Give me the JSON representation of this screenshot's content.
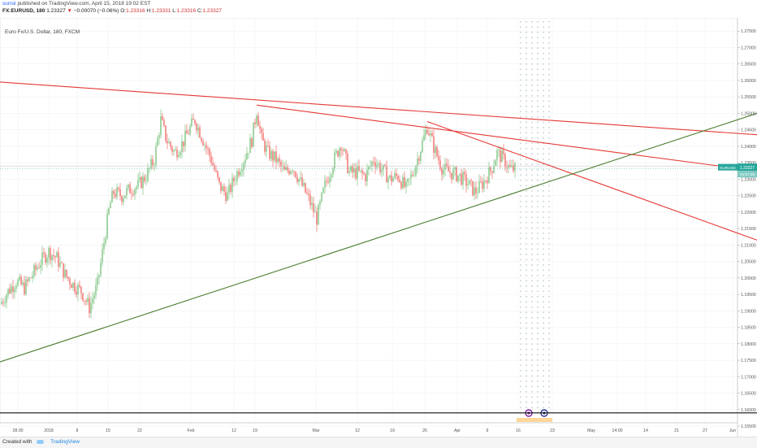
{
  "header": {
    "user": "sunsii",
    "published": "published on TradingView.com, April 15, 2018 19:02 EST",
    "symbol": "FX:EURUSD, 180",
    "price": "1.23327",
    "change": "−0.00070 (−0.06%)",
    "ohlc": [
      {
        "label": "O:",
        "value": "1.23316"
      },
      {
        "label": "H:",
        "value": "1.23331"
      },
      {
        "label": "L:",
        "value": "1.23316"
      },
      {
        "label": "C:",
        "value": "1.23327"
      }
    ]
  },
  "chart_data": {
    "type": "candlestick",
    "title": "Euro Fx/U.S. Dollar, 180, FXCM",
    "symbol": "FX:EURUSD",
    "interval": "180",
    "ylim": [
      1.156,
      1.279
    ],
    "y_ticks": [
      "1.27500",
      "1.27000",
      "1.26500",
      "1.26000",
      "1.25500",
      "1.25000",
      "1.24500",
      "1.24000",
      "1.23500",
      "1.23000",
      "1.22500",
      "1.22000",
      "1.21500",
      "1.21000",
      "1.20500",
      "1.20000",
      "1.19500",
      "1.19000",
      "1.18500",
      "1.18000",
      "1.17500",
      "1.17000",
      "1.16500",
      "1.16000",
      "1.15500"
    ],
    "x_ticks": [
      "28.00",
      "2018",
      "8",
      "15",
      "22",
      "Feb",
      "12",
      "19",
      "Mar",
      "12",
      "19",
      "26",
      "Apr",
      "9",
      "16",
      "23",
      "May",
      "14:00",
      "14",
      "21",
      "27",
      "Jun"
    ],
    "approx_close": [
      [
        0,
        1.192
      ],
      [
        10,
        1.196
      ],
      [
        20,
        1.199
      ],
      [
        30,
        1.197
      ],
      [
        40,
        1.201
      ],
      [
        50,
        1.205
      ],
      [
        60,
        1.208
      ],
      [
        70,
        1.206
      ],
      [
        80,
        1.201
      ],
      [
        90,
        1.198
      ],
      [
        100,
        1.196
      ],
      [
        110,
        1.191
      ],
      [
        120,
        1.198
      ],
      [
        125,
        1.206
      ],
      [
        130,
        1.214
      ],
      [
        135,
        1.222
      ],
      [
        140,
        1.226
      ],
      [
        150,
        1.225
      ],
      [
        160,
        1.227
      ],
      [
        170,
        1.228
      ],
      [
        180,
        1.231
      ],
      [
        190,
        1.236
      ],
      [
        198,
        1.248
      ],
      [
        205,
        1.242
      ],
      [
        215,
        1.238
      ],
      [
        225,
        1.241
      ],
      [
        235,
        1.246
      ],
      [
        240,
        1.248
      ],
      [
        250,
        1.242
      ],
      [
        260,
        1.236
      ],
      [
        270,
        1.228
      ],
      [
        280,
        1.225
      ],
      [
        290,
        1.231
      ],
      [
        300,
        1.236
      ],
      [
        310,
        1.242
      ],
      [
        316,
        1.251
      ],
      [
        322,
        1.242
      ],
      [
        330,
        1.238
      ],
      [
        340,
        1.236
      ],
      [
        350,
        1.232
      ],
      [
        360,
        1.234
      ],
      [
        370,
        1.229
      ],
      [
        380,
        1.224
      ],
      [
        390,
        1.218
      ],
      [
        400,
        1.228
      ],
      [
        410,
        1.235
      ],
      [
        420,
        1.241
      ],
      [
        430,
        1.232
      ],
      [
        440,
        1.232
      ],
      [
        450,
        1.231
      ],
      [
        460,
        1.236
      ],
      [
        470,
        1.233
      ],
      [
        480,
        1.23
      ],
      [
        490,
        1.231
      ],
      [
        500,
        1.227
      ],
      [
        510,
        1.233
      ],
      [
        520,
        1.241
      ],
      [
        526,
        1.246
      ],
      [
        535,
        1.239
      ],
      [
        545,
        1.233
      ],
      [
        555,
        1.232
      ],
      [
        565,
        1.231
      ],
      [
        575,
        1.229
      ],
      [
        585,
        1.226
      ],
      [
        595,
        1.229
      ],
      [
        605,
        1.233
      ],
      [
        612,
        1.238
      ],
      [
        620,
        1.236
      ],
      [
        628,
        1.233
      ],
      [
        635,
        1.233
      ]
    ],
    "last_price": "1.23327",
    "last_label": "EURUSD",
    "countdown": "01:57:26",
    "trendlines": [
      {
        "color": "#e53935",
        "p1": [
          0,
          1.2595
        ],
        "p2": [
          932,
          1.2435
        ]
      },
      {
        "color": "#e53935",
        "p1": [
          316,
          1.2525
        ],
        "p2": [
          932,
          1.2325
        ]
      },
      {
        "color": "#e53935",
        "p1": [
          526,
          1.2475
        ],
        "p2": [
          932,
          1.2115
        ]
      },
      {
        "color": "#4a7c2a",
        "p1": [
          0,
          1.1745
        ],
        "p2": [
          932,
          1.25
        ]
      },
      {
        "color": "#111111",
        "p1": [
          0,
          1.159
        ],
        "p2": [
          932,
          1.159
        ]
      }
    ],
    "grid": true,
    "price_scale": "right"
  },
  "footer": {
    "created": "Created with",
    "brand": "TradingView"
  },
  "colors": {
    "up_candle": "#66bb6a",
    "down_candle": "#ef5350",
    "price_tag": "#26a69a",
    "grid": "#eceff1",
    "axis_text": "#555555"
  }
}
